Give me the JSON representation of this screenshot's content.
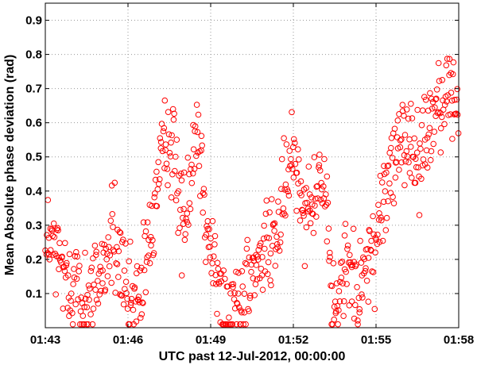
{
  "chart_data": {
    "type": "scatter",
    "title": "",
    "xlabel": "UTC past 12-Jul-2012, 00:00:00",
    "ylabel": "Mean Absolute phase deviation (rad)",
    "x_unit": "minutes past 01:43",
    "xlim": [
      "01:43",
      "01:58"
    ],
    "ylim": [
      0.0,
      0.95
    ],
    "x_ticks": [
      "01:43",
      "01:46",
      "01:49",
      "01:52",
      "01:55",
      "01:58"
    ],
    "y_ticks": [
      "0.1",
      "0.2",
      "0.3",
      "0.4",
      "0.5",
      "0.6",
      "0.7",
      "0.8",
      "0.9"
    ],
    "grid": true,
    "marker": "open-circle",
    "marker_color": "#ff0000",
    "trend_segments": [
      {
        "from": "01:43:00",
        "to": "01:44:00",
        "y_start": 0.27,
        "y_end": 0.12
      },
      {
        "from": "01:44:00",
        "to": "01:44:30",
        "y_start": 0.12,
        "y_end": 0.06
      },
      {
        "from": "01:44:30",
        "to": "01:45:30",
        "y_start": 0.06,
        "y_end": 0.28
      },
      {
        "from": "01:45:30",
        "to": "01:46:00",
        "y_start": 0.28,
        "y_end": 0.06
      },
      {
        "from": "01:46:00",
        "to": "01:46:30",
        "y_start": 0.06,
        "y_end": 0.1
      },
      {
        "from": "01:46:30",
        "to": "01:47:00",
        "y_start": 0.1,
        "y_end": 0.38
      },
      {
        "from": "01:47:00",
        "to": "01:47:30",
        "y_start": 0.38,
        "y_end": 0.58
      },
      {
        "from": "01:47:30",
        "to": "01:48:00",
        "y_start": 0.58,
        "y_end": 0.3
      },
      {
        "from": "01:48:00",
        "to": "01:48:30",
        "y_start": 0.3,
        "y_end": 0.6
      },
      {
        "from": "01:48:30",
        "to": "01:49:00",
        "y_start": 0.6,
        "y_end": 0.22
      },
      {
        "from": "01:49:00",
        "to": "01:49:30",
        "y_start": 0.22,
        "y_end": 0.05
      },
      {
        "from": "01:49:30",
        "to": "01:50:00",
        "y_start": 0.05,
        "y_end": 0.08
      },
      {
        "from": "01:50:00",
        "to": "01:50:30",
        "y_start": 0.08,
        "y_end": 0.14
      },
      {
        "from": "01:50:30",
        "to": "01:51:00",
        "y_start": 0.14,
        "y_end": 0.22
      },
      {
        "from": "01:51:00",
        "to": "01:51:30",
        "y_start": 0.22,
        "y_end": 0.3
      },
      {
        "from": "01:51:30",
        "to": "01:52:00",
        "y_start": 0.3,
        "y_end": 0.52
      },
      {
        "from": "01:52:00",
        "to": "01:52:30",
        "y_start": 0.52,
        "y_end": 0.35
      },
      {
        "from": "01:52:30",
        "to": "01:53:00",
        "y_start": 0.35,
        "y_end": 0.45
      },
      {
        "from": "01:53:00",
        "to": "01:53:30",
        "y_start": 0.45,
        "y_end": 0.05
      },
      {
        "from": "01:53:30",
        "to": "01:54:00",
        "y_start": 0.05,
        "y_end": 0.18
      },
      {
        "from": "01:54:00",
        "to": "01:54:30",
        "y_start": 0.18,
        "y_end": 0.12
      },
      {
        "from": "01:54:30",
        "to": "01:55:00",
        "y_start": 0.12,
        "y_end": 0.25
      },
      {
        "from": "01:55:00",
        "to": "01:55:30",
        "y_start": 0.25,
        "y_end": 0.45
      },
      {
        "from": "01:55:30",
        "to": "01:56:00",
        "y_start": 0.45,
        "y_end": 0.55
      },
      {
        "from": "01:56:00",
        "to": "01:56:30",
        "y_start": 0.55,
        "y_end": 0.5
      },
      {
        "from": "01:56:30",
        "to": "01:57:00",
        "y_start": 0.5,
        "y_end": 0.6
      },
      {
        "from": "01:57:00",
        "to": "01:57:30",
        "y_start": 0.6,
        "y_end": 0.72
      },
      {
        "from": "01:57:30",
        "to": "01:58:00",
        "y_start": 0.72,
        "y_end": 0.62
      }
    ],
    "approx_point_count": 700,
    "noise_spread": 0.09
  }
}
